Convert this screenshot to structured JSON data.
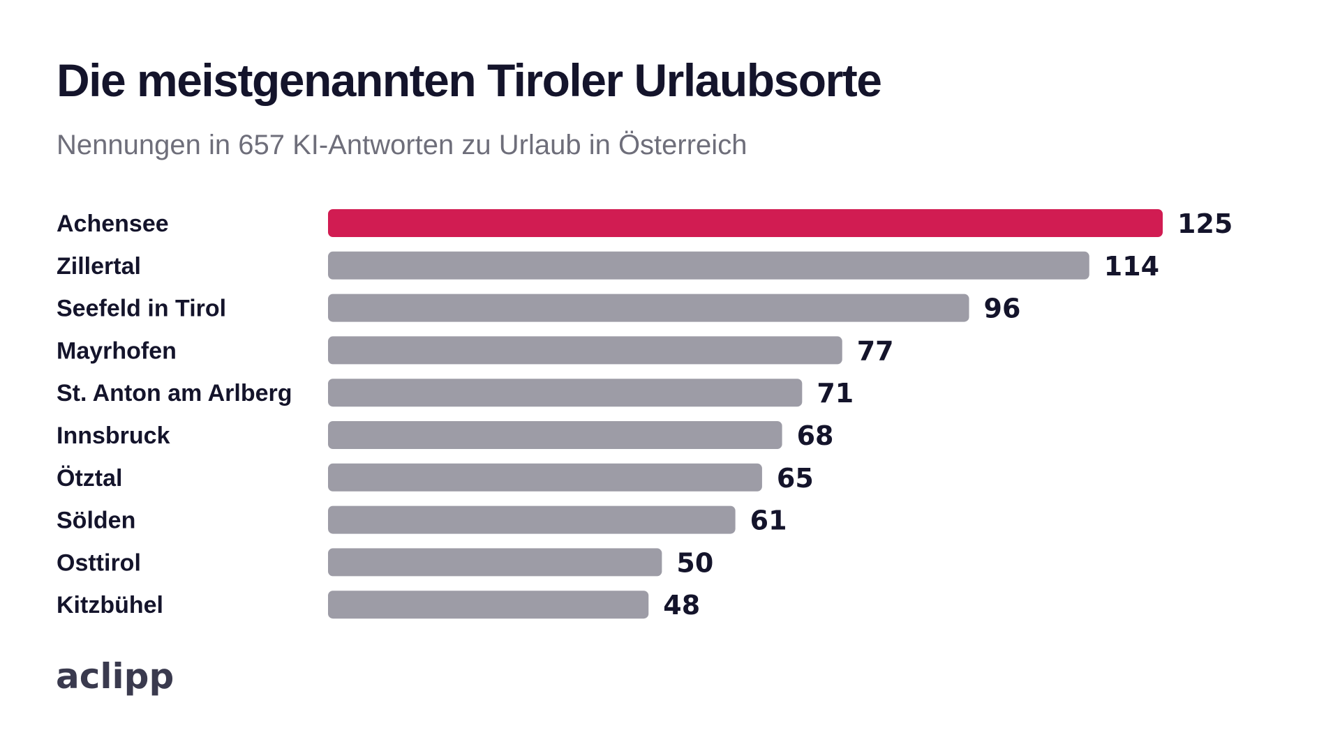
{
  "chart_data": {
    "type": "bar",
    "orientation": "horizontal",
    "title": "Die meistgenannten Tiroler Urlaubsorte",
    "subtitle": "Nennungen in 657 KI-Antworten zu Urlaub in Österreich",
    "categories": [
      "Achensee",
      "Zillertal",
      "Seefeld in Tirol",
      "Mayrhofen",
      "St. Anton am Arlberg",
      "Innsbruck",
      "Ötztal",
      "Sölden",
      "Osttirol",
      "Kitzbühel"
    ],
    "values": [
      125,
      114,
      96,
      77,
      71,
      68,
      65,
      61,
      50,
      48
    ],
    "xlim": [
      0,
      125
    ],
    "grid": false,
    "legend": "none",
    "highlight_index": 0,
    "colors": {
      "highlight": "#d11c52",
      "bar": "#9d9ca6",
      "text": "#14142b",
      "subtitle": "#6e6e7a"
    }
  },
  "branding": {
    "logo_text": "aclipp"
  }
}
